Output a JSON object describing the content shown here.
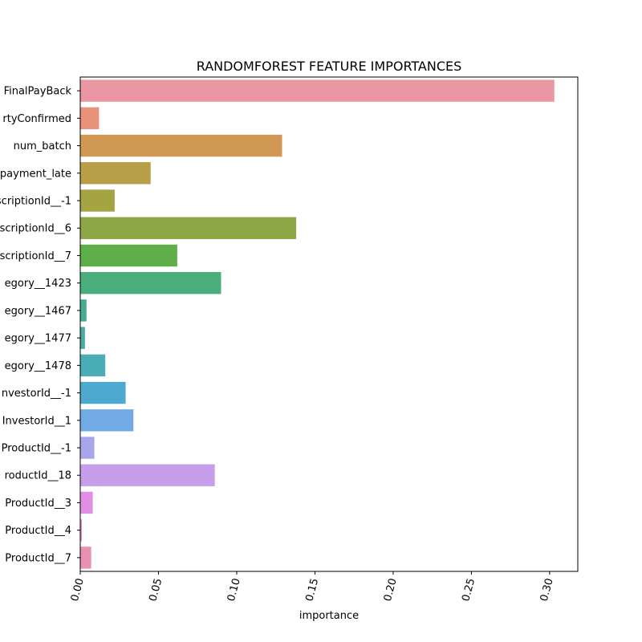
{
  "chart_data": {
    "type": "bar",
    "orientation": "horizontal",
    "title": "RANDOMFOREST FEATURE IMPORTANCES",
    "xlabel": "importance",
    "ylabel": "",
    "xlim": [
      0,
      0.318
    ],
    "xticks": [
      0.0,
      0.05,
      0.1,
      0.15,
      0.2,
      0.25,
      0.3
    ],
    "xtick_labels": [
      "0.00",
      "0.05",
      "0.10",
      "0.15",
      "0.20",
      "0.25",
      "0.30"
    ],
    "grid": false,
    "categories": [
      "FinalPayBack",
      "rtyConfirmed",
      "num_batch",
      "payment_late",
      "scriptionId__-1",
      "scriptionId__6",
      "scriptionId__7",
      "egory__1423",
      "egory__1467",
      "egory__1477",
      "egory__1478",
      "nvestorId__-1",
      "InvestorId__1",
      "ProductId__-1",
      "roductId__18",
      "ProductId__3",
      "ProductId__4",
      "ProductId__7"
    ],
    "values": [
      0.303,
      0.012,
      0.129,
      0.045,
      0.022,
      0.138,
      0.062,
      0.09,
      0.004,
      0.003,
      0.016,
      0.029,
      0.034,
      0.009,
      0.086,
      0.008,
      0.001,
      0.007
    ],
    "colors": [
      "#ea96a3",
      "#e8917b",
      "#d09852",
      "#b89e47",
      "#a4a442",
      "#8ca645",
      "#5eaf4a",
      "#4aaf7d",
      "#48ac93",
      "#49aca3",
      "#4badb6",
      "#4ea9d0",
      "#72aae6",
      "#a8a5ea",
      "#c69eea",
      "#e18fe3",
      "#e78dcb",
      "#e991b3"
    ]
  }
}
